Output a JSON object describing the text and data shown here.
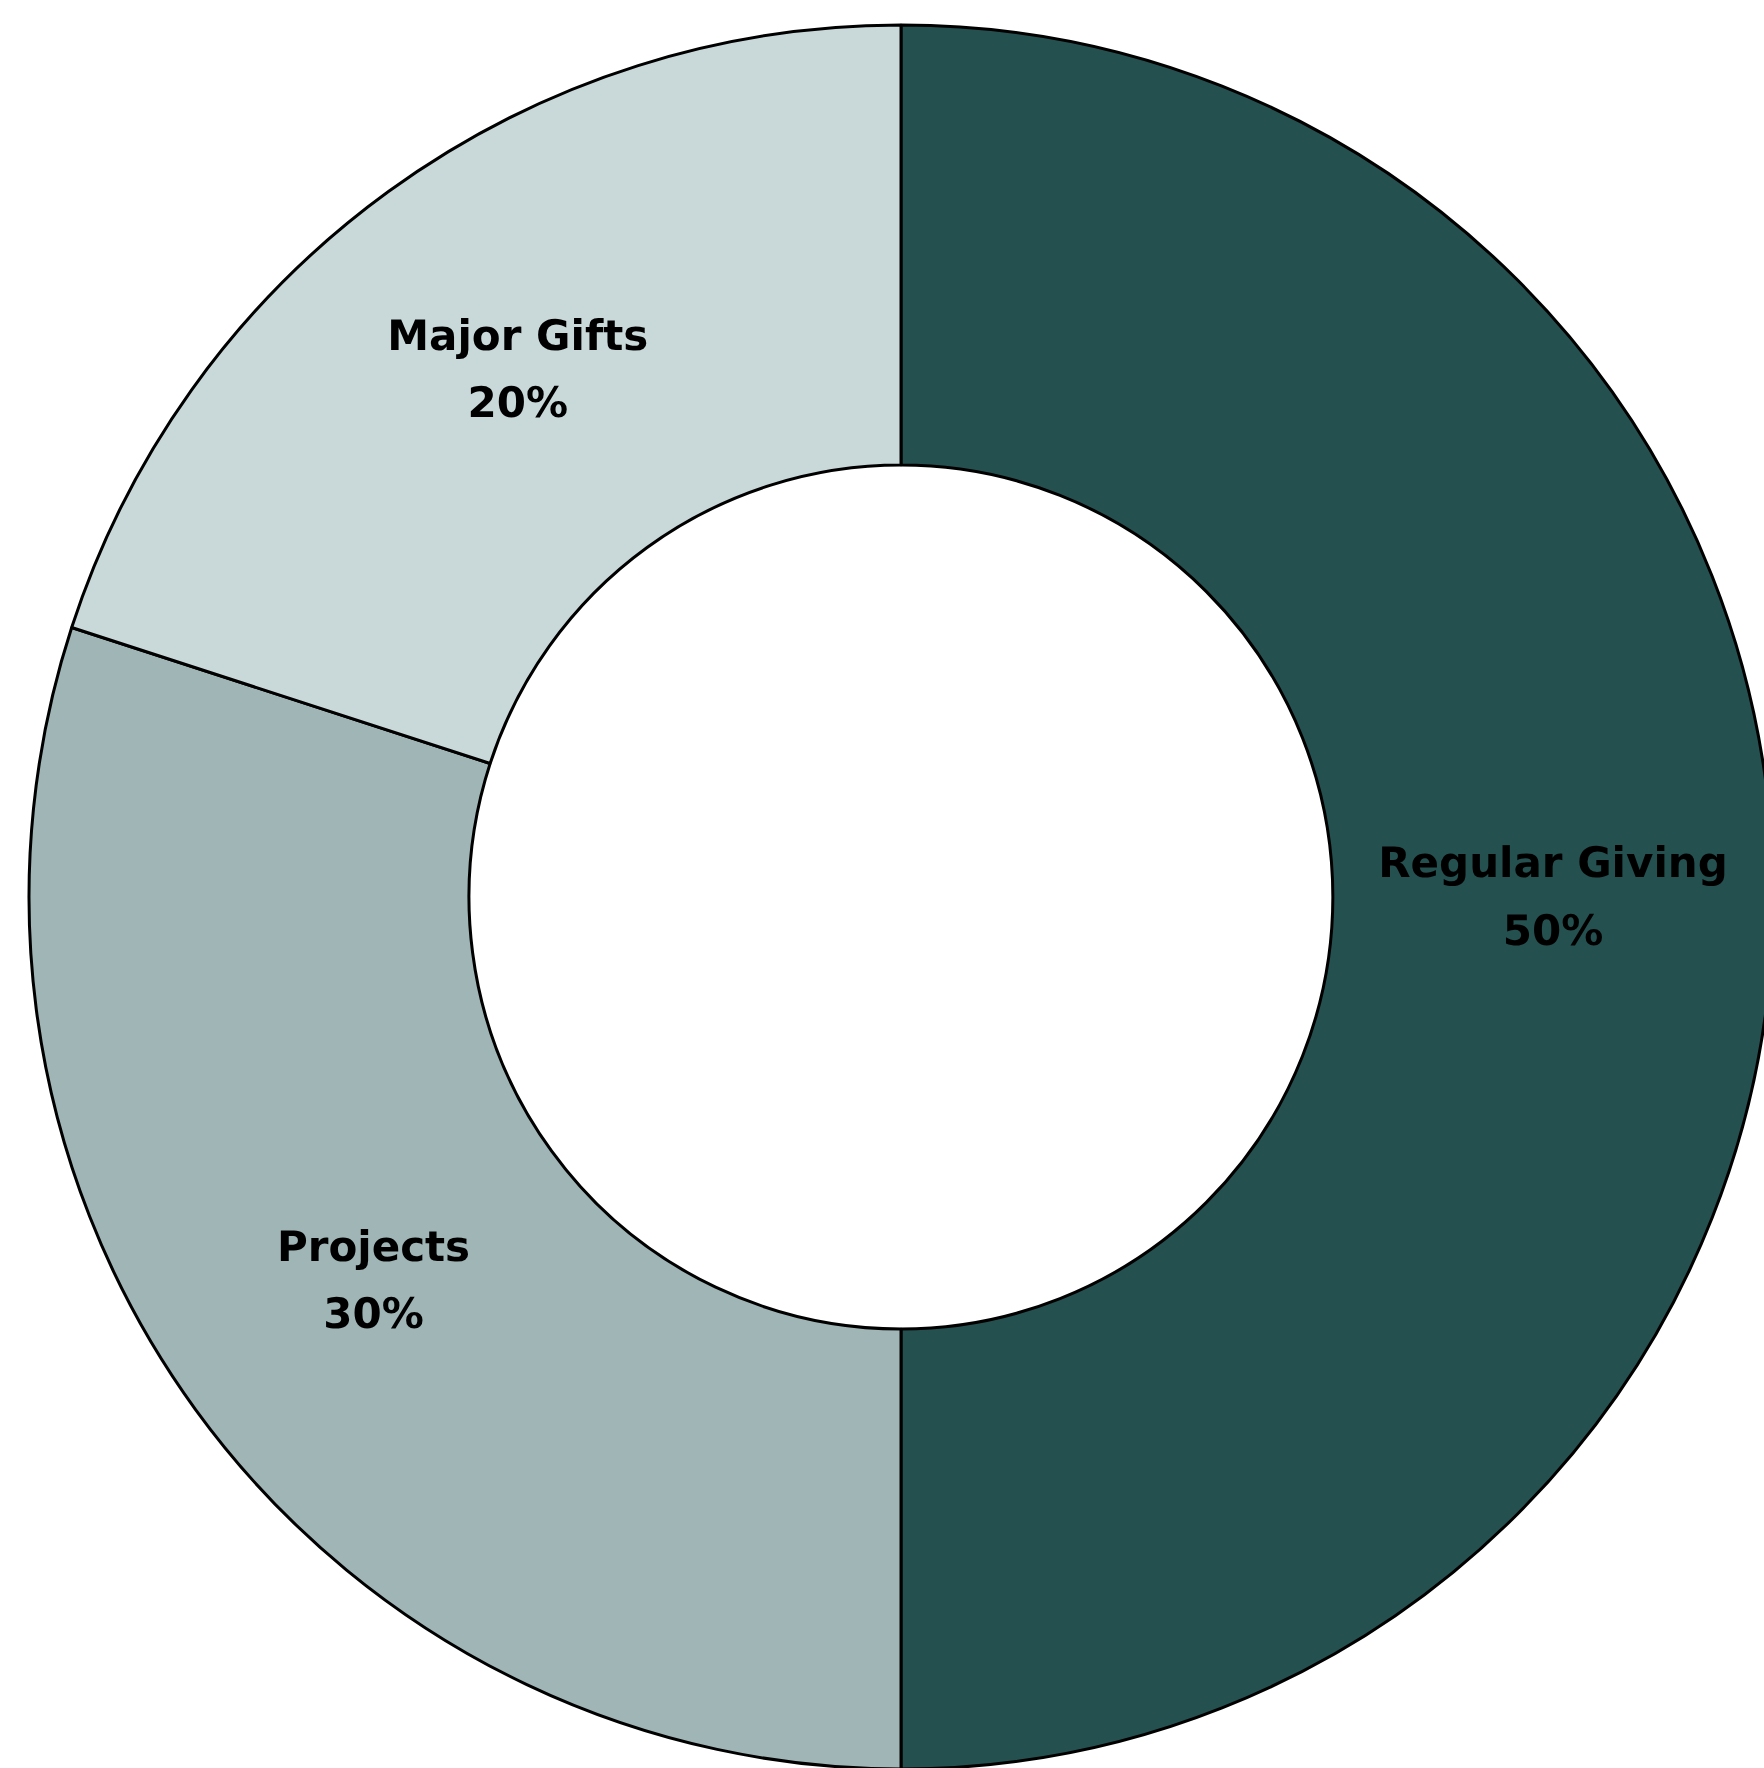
{
  "chart_data": {
    "type": "donut",
    "categories": [
      "Regular Giving",
      "Projects",
      "Major Gifts"
    ],
    "values": [
      50,
      30,
      20
    ],
    "colors": [
      "#24504f",
      "#9fb5b6",
      "#c9d9d9"
    ],
    "value_labels": [
      "50%",
      "30%",
      "20%"
    ]
  }
}
